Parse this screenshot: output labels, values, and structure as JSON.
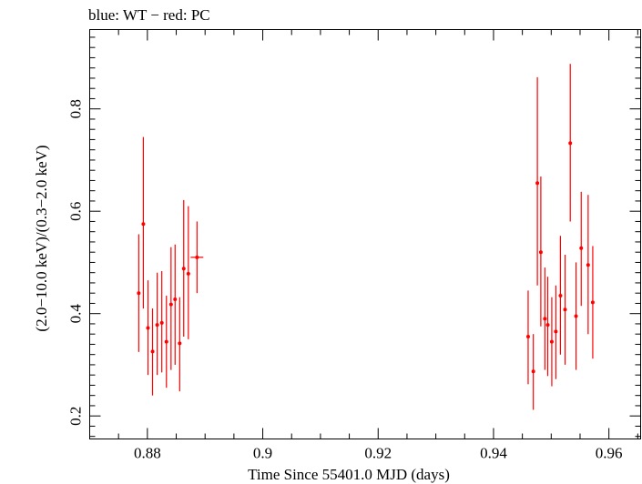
{
  "chart_data": {
    "type": "scatter",
    "title": "blue: WT − red: PC",
    "xlabel": "Time Since 55401.0 MJD (days)",
    "ylabel": "(2.0−10.0 keV)/(0.3−2.0 keV)",
    "xlim": [
      0.87,
      0.9655
    ],
    "ylim": [
      0.155,
      0.955
    ],
    "xticks": [
      0.88,
      0.9,
      0.92,
      0.94,
      0.96
    ],
    "xtick_labels": [
      "0.88",
      "0.9",
      "0.92",
      "0.94",
      "0.96"
    ],
    "yticks": [
      0.2,
      0.4,
      0.6,
      0.8
    ],
    "ytick_labels": [
      "0.2",
      "0.4",
      "0.6",
      "0.8"
    ],
    "grid": false,
    "series": [
      {
        "color": "#ff0000",
        "points": [
          {
            "x": 0.8785,
            "y": 0.44,
            "lo": 0.325,
            "hi": 0.555,
            "xerr": 0.0002
          },
          {
            "x": 0.8793,
            "y": 0.575,
            "lo": 0.41,
            "hi": 0.745,
            "xerr": 0.0002
          },
          {
            "x": 0.8801,
            "y": 0.372,
            "lo": 0.28,
            "hi": 0.465,
            "xerr": 0.0002
          },
          {
            "x": 0.8809,
            "y": 0.326,
            "lo": 0.24,
            "hi": 0.41,
            "xerr": 0.0002
          },
          {
            "x": 0.8817,
            "y": 0.378,
            "lo": 0.28,
            "hi": 0.48,
            "xerr": 0.0002
          },
          {
            "x": 0.8825,
            "y": 0.382,
            "lo": 0.285,
            "hi": 0.483,
            "xerr": 0.0002
          },
          {
            "x": 0.8833,
            "y": 0.345,
            "lo": 0.255,
            "hi": 0.435,
            "xerr": 0.0002
          },
          {
            "x": 0.8841,
            "y": 0.418,
            "lo": 0.29,
            "hi": 0.53,
            "xerr": 0.0002
          },
          {
            "x": 0.8848,
            "y": 0.428,
            "lo": 0.3,
            "hi": 0.535,
            "xerr": 0.0002
          },
          {
            "x": 0.8856,
            "y": 0.342,
            "lo": 0.248,
            "hi": 0.432,
            "xerr": 0.0002
          },
          {
            "x": 0.8863,
            "y": 0.488,
            "lo": 0.355,
            "hi": 0.622,
            "xerr": 0.0002
          },
          {
            "x": 0.8871,
            "y": 0.478,
            "lo": 0.35,
            "hi": 0.61,
            "xerr": 0.0002
          },
          {
            "x": 0.8886,
            "y": 0.51,
            "lo": 0.44,
            "hi": 0.58,
            "xerr": 0.0011
          },
          {
            "x": 0.946,
            "y": 0.355,
            "lo": 0.262,
            "hi": 0.445,
            "xerr": 0.0002
          },
          {
            "x": 0.9469,
            "y": 0.287,
            "lo": 0.212,
            "hi": 0.36,
            "xerr": 0.0002
          },
          {
            "x": 0.9476,
            "y": 0.655,
            "lo": 0.455,
            "hi": 0.862,
            "xerr": 0.0002
          },
          {
            "x": 0.9482,
            "y": 0.52,
            "lo": 0.375,
            "hi": 0.668,
            "xerr": 0.0002
          },
          {
            "x": 0.9489,
            "y": 0.39,
            "lo": 0.29,
            "hi": 0.49,
            "xerr": 0.0002
          },
          {
            "x": 0.9494,
            "y": 0.378,
            "lo": 0.278,
            "hi": 0.472,
            "xerr": 0.0002
          },
          {
            "x": 0.9501,
            "y": 0.345,
            "lo": 0.258,
            "hi": 0.432,
            "xerr": 0.0002
          },
          {
            "x": 0.9508,
            "y": 0.365,
            "lo": 0.272,
            "hi": 0.455,
            "xerr": 0.0002
          },
          {
            "x": 0.9516,
            "y": 0.435,
            "lo": 0.32,
            "hi": 0.552,
            "xerr": 0.0002
          },
          {
            "x": 0.9524,
            "y": 0.408,
            "lo": 0.3,
            "hi": 0.515,
            "xerr": 0.0002
          },
          {
            "x": 0.9533,
            "y": 0.733,
            "lo": 0.58,
            "hi": 0.888,
            "xerr": 0.0002
          },
          {
            "x": 0.9543,
            "y": 0.395,
            "lo": 0.29,
            "hi": 0.5,
            "xerr": 0.0002
          },
          {
            "x": 0.9552,
            "y": 0.528,
            "lo": 0.415,
            "hi": 0.638,
            "xerr": 0.0002
          },
          {
            "x": 0.9564,
            "y": 0.495,
            "lo": 0.36,
            "hi": 0.632,
            "xerr": 0.0002
          },
          {
            "x": 0.9572,
            "y": 0.422,
            "lo": 0.312,
            "hi": 0.532,
            "xerr": 0.0002
          }
        ]
      }
    ]
  }
}
